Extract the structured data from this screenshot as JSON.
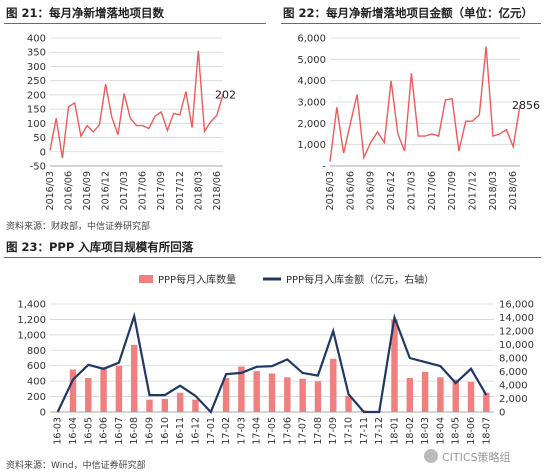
{
  "figures": {
    "fig21": {
      "title": "图 21：每月净新增落地项目数",
      "source": "资料来源：财政部，中信证券研究部"
    },
    "fig22": {
      "title": "图 22：每月净新增落地项目金额（单位：亿元）"
    },
    "fig23": {
      "title": "图 23：PPP 入库项目规模有所回落",
      "source": "资料来源：Wind，中信证券研究部"
    }
  },
  "watermark": {
    "text": "CITICS策略组"
  },
  "colors": {
    "line_red": "#ef5a5a",
    "bar_pink": "#f08080",
    "line_navy": "#1f3864",
    "title_rule": "#4a6fa5"
  },
  "chart_data": [
    {
      "id": "fig21",
      "type": "line",
      "x_ticks": [
        "2016/03",
        "2016/06",
        "2016/09",
        "2016/12",
        "2017/03",
        "2017/06",
        "2017/09",
        "2017/12",
        "2018/03",
        "2018/06"
      ],
      "ylim": [
        -50,
        400
      ],
      "y_ticks": [
        -50,
        0,
        50,
        100,
        150,
        200,
        250,
        300,
        350,
        400
      ],
      "grid": true,
      "values": [
        5,
        118,
        -22,
        158,
        172,
        55,
        92,
        70,
        95,
        238,
        122,
        60,
        205,
        118,
        92,
        92,
        82,
        125,
        140,
        75,
        135,
        130,
        212,
        85,
        355,
        72,
        105,
        128,
        202
      ],
      "end_label": "202"
    },
    {
      "id": "fig22",
      "type": "line",
      "x_ticks": [
        "2016/03",
        "2016/06",
        "2016/09",
        "2016/12",
        "2017/03",
        "2017/06",
        "2017/09",
        "2017/12",
        "2018/03",
        "2018/06"
      ],
      "ylim": [
        0,
        6000
      ],
      "y_ticks": [
        "-",
        "1,000",
        "2,000",
        "3,000",
        "4,000",
        "5,000",
        "6,000"
      ],
      "grid": true,
      "values": [
        200,
        2750,
        600,
        2000,
        3350,
        400,
        1100,
        1600,
        1100,
        4000,
        1500,
        700,
        4350,
        1400,
        1400,
        1500,
        1400,
        3100,
        3150,
        700,
        2100,
        2100,
        2400,
        5600,
        1400,
        1500,
        1700,
        900,
        2856
      ],
      "end_label": "2856"
    },
    {
      "id": "fig23",
      "type": "bar+line",
      "categories": [
        "16-03",
        "16-04",
        "16-05",
        "16-06",
        "16-07",
        "16-08",
        "16-09",
        "16-10",
        "16-11",
        "16-12",
        "17-01",
        "17-02",
        "17-03",
        "17-04",
        "17-05",
        "17-06",
        "17-07",
        "17-08",
        "17-09",
        "17-10",
        "17-11",
        "17-12",
        "18-01",
        "18-02",
        "18-03",
        "18-04",
        "18-05",
        "18-06",
        "18-07"
      ],
      "series": [
        {
          "name": "PPP每月入库数量",
          "axis": "left",
          "kind": "bar",
          "values": [
            0,
            550,
            440,
            580,
            600,
            870,
            160,
            170,
            250,
            160,
            0,
            440,
            590,
            530,
            500,
            450,
            430,
            400,
            690,
            210,
            20,
            10,
            1200,
            440,
            520,
            450,
            420,
            390,
            250
          ]
        },
        {
          "name": "PPP每月入库金额（亿元，右轴）",
          "axis": "right",
          "kind": "line",
          "values": [
            0,
            4800,
            7000,
            6400,
            7300,
            14200,
            2500,
            2500,
            3900,
            2400,
            0,
            5600,
            5800,
            6700,
            6800,
            7800,
            5800,
            5400,
            12000,
            2600,
            0,
            0,
            14000,
            8000,
            7400,
            6800,
            4300,
            6400,
            2500
          ]
        }
      ],
      "ylim_left": [
        0,
        1400
      ],
      "y_ticks_left": [
        "0",
        "200",
        "400",
        "600",
        "800",
        "1,000",
        "1,200",
        "1,400"
      ],
      "ylim_right": [
        0,
        16000
      ],
      "y_ticks_right": [
        "0",
        "2,000",
        "4,000",
        "6,000",
        "8,000",
        "10,000",
        "12,000",
        "14,000",
        "16,000"
      ],
      "grid": true,
      "legend_position": "top"
    }
  ]
}
